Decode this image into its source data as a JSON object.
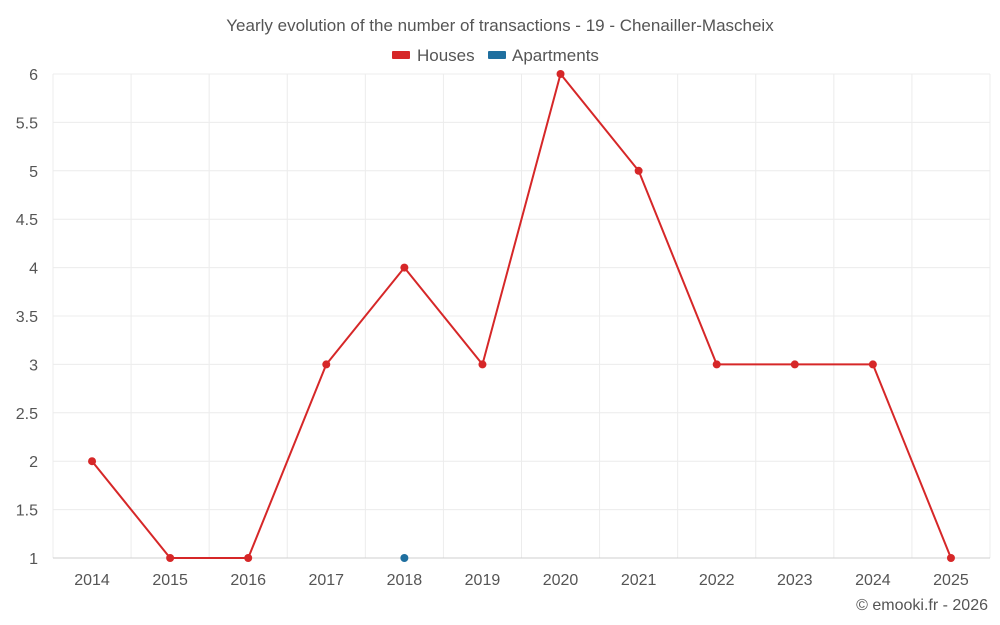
{
  "chart_data": {
    "type": "line",
    "title": "Yearly evolution of the number of transactions - 19 - Chenailler-Mascheix",
    "xlabel": "",
    "ylabel": "",
    "categories": [
      "2014",
      "2015",
      "2016",
      "2017",
      "2018",
      "2019",
      "2020",
      "2021",
      "2022",
      "2023",
      "2024",
      "2025"
    ],
    "ylim": [
      1,
      6
    ],
    "yticks": [
      "1",
      "1.5",
      "2",
      "2.5",
      "3",
      "3.5",
      "4",
      "4.5",
      "5",
      "5.5",
      "6"
    ],
    "grid": true,
    "legend_position": "top-center",
    "series": [
      {
        "name": "Houses",
        "color": "#d62728",
        "values": [
          2,
          1,
          1,
          3,
          4,
          3,
          6,
          5,
          3,
          3,
          3,
          1
        ]
      },
      {
        "name": "Apartments",
        "color": "#1f6f9f",
        "values": [
          null,
          null,
          null,
          null,
          1,
          null,
          null,
          null,
          null,
          null,
          null,
          null
        ]
      }
    ]
  },
  "credit": "© emooki.fr - 2026"
}
